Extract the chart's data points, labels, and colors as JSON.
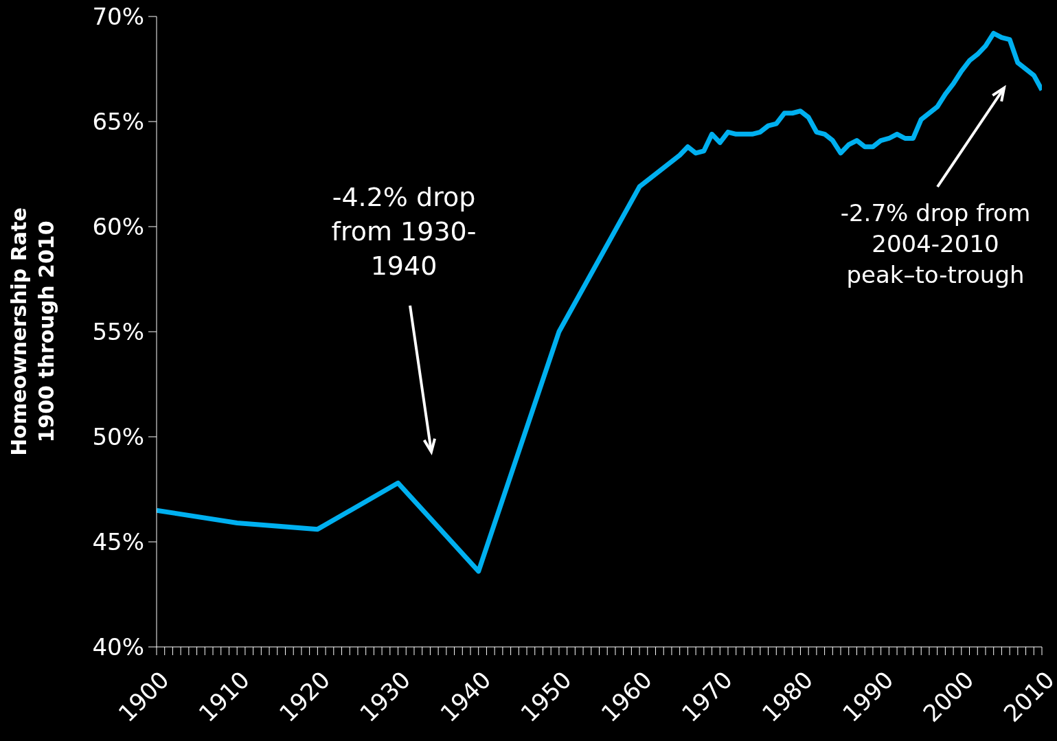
{
  "chart_data": {
    "type": "line",
    "ylabel": "Homeownership Rate\n1900 through 2010",
    "x": [
      1900,
      1910,
      1920,
      1930,
      1940,
      1950,
      1960,
      1965,
      1966,
      1967,
      1968,
      1969,
      1970,
      1971,
      1972,
      1973,
      1974,
      1975,
      1976,
      1977,
      1978,
      1979,
      1980,
      1981,
      1982,
      1983,
      1984,
      1985,
      1986,
      1987,
      1988,
      1989,
      1990,
      1991,
      1992,
      1993,
      1994,
      1995,
      1996,
      1997,
      1998,
      1999,
      2000,
      2001,
      2002,
      2003,
      2004,
      2005,
      2006,
      2007,
      2008,
      2009,
      2010
    ],
    "series": [
      {
        "color": "#00b0f0",
        "values": [
          46.5,
          45.9,
          45.6,
          47.8,
          43.6,
          55.0,
          61.9,
          63.4,
          63.8,
          63.5,
          63.6,
          64.4,
          64.0,
          64.5,
          64.4,
          64.4,
          64.4,
          64.5,
          64.8,
          64.9,
          65.4,
          65.4,
          65.5,
          65.2,
          64.5,
          64.4,
          64.1,
          63.5,
          63.9,
          64.1,
          63.8,
          63.8,
          64.1,
          64.2,
          64.4,
          64.2,
          64.2,
          65.1,
          65.4,
          65.7,
          66.3,
          66.8,
          67.4,
          67.9,
          68.2,
          68.6,
          69.2,
          69.0,
          68.9,
          67.8,
          67.5,
          67.2,
          66.5
        ]
      }
    ],
    "xlim": [
      1900,
      2010
    ],
    "xticks": [
      1900,
      {
        "value": 1901,
        "label": null
      },
      {
        "value": 1902,
        "label": null
      },
      {
        "value": 1903,
        "label": null
      },
      {
        "value": 1904,
        "label": null
      },
      {
        "value": 1905,
        "label": null
      },
      {
        "value": 1906,
        "label": null
      },
      {
        "value": 1907,
        "label": null
      },
      {
        "value": 1908,
        "label": null
      },
      {
        "value": 1909,
        "label": null
      },
      1910,
      {
        "value": 1911,
        "label": null
      },
      {
        "value": 1912,
        "label": null
      },
      {
        "value": 1913,
        "label": null
      },
      {
        "value": 1914,
        "label": null
      },
      {
        "value": 1915,
        "label": null
      },
      {
        "value": 1916,
        "label": null
      },
      {
        "value": 1917,
        "label": null
      },
      {
        "value": 1918,
        "label": null
      },
      {
        "value": 1919,
        "label": null
      },
      1920,
      {
        "value": 1921,
        "label": null
      },
      {
        "value": 1922,
        "label": null
      },
      {
        "value": 1923,
        "label": null
      },
      {
        "value": 1924,
        "label": null
      },
      {
        "value": 1925,
        "label": null
      },
      {
        "value": 1926,
        "label": null
      },
      {
        "value": 1927,
        "label": null
      },
      {
        "value": 1928,
        "label": null
      },
      {
        "value": 1929,
        "label": null
      },
      1930,
      {
        "value": 1931,
        "label": null
      },
      {
        "value": 1932,
        "label": null
      },
      {
        "value": 1933,
        "label": null
      },
      {
        "value": 1934,
        "label": null
      },
      {
        "value": 1935,
        "label": null
      },
      {
        "value": 1936,
        "label": null
      },
      {
        "value": 1937,
        "label": null
      },
      {
        "value": 1938,
        "label": null
      },
      {
        "value": 1939,
        "label": null
      },
      1940,
      {
        "value": 1941,
        "label": null
      },
      {
        "value": 1942,
        "label": null
      },
      {
        "value": 1943,
        "label": null
      },
      {
        "value": 1944,
        "label": null
      },
      {
        "value": 1945,
        "label": null
      },
      {
        "value": 1946,
        "label": null
      },
      {
        "value": 1947,
        "label": null
      },
      {
        "value": 1948,
        "label": null
      },
      {
        "value": 1949,
        "label": null
      },
      1950,
      {
        "value": 1951,
        "label": null
      },
      {
        "value": 1952,
        "label": null
      },
      {
        "value": 1953,
        "label": null
      },
      {
        "value": 1954,
        "label": null
      },
      {
        "value": 1955,
        "label": null
      },
      {
        "value": 1956,
        "label": null
      },
      {
        "value": 1957,
        "label": null
      },
      {
        "value": 1958,
        "label": null
      },
      {
        "value": 1959,
        "label": null
      },
      1960,
      {
        "value": 1961,
        "label": null
      },
      {
        "value": 1962,
        "label": null
      },
      {
        "value": 1963,
        "label": null
      },
      {
        "value": 1964,
        "label": null
      },
      {
        "value": 1965,
        "label": null
      },
      {
        "value": 1966,
        "label": null
      },
      {
        "value": 1967,
        "label": null
      },
      {
        "value": 1968,
        "label": null
      },
      {
        "value": 1969,
        "label": null
      },
      1970,
      {
        "value": 1971,
        "label": null
      },
      {
        "value": 1972,
        "label": null
      },
      {
        "value": 1973,
        "label": null
      },
      {
        "value": 1974,
        "label": null
      },
      {
        "value": 1975,
        "label": null
      },
      {
        "value": 1976,
        "label": null
      },
      {
        "value": 1977,
        "label": null
      },
      {
        "value": 1978,
        "label": null
      },
      {
        "value": 1979,
        "label": null
      },
      1980,
      {
        "value": 1981,
        "label": null
      },
      {
        "value": 1982,
        "label": null
      },
      {
        "value": 1983,
        "label": null
      },
      {
        "value": 1984,
        "label": null
      },
      {
        "value": 1985,
        "label": null
      },
      {
        "value": 1986,
        "label": null
      },
      {
        "value": 1987,
        "label": null
      },
      {
        "value": 1988,
        "label": null
      },
      {
        "value": 1989,
        "label": null
      },
      1990,
      {
        "value": 1991,
        "label": null
      },
      {
        "value": 1992,
        "label": null
      },
      {
        "value": 1993,
        "label": null
      },
      {
        "value": 1994,
        "label": null
      },
      {
        "value": 1995,
        "label": null
      },
      {
        "value": 1996,
        "label": null
      },
      {
        "value": 1997,
        "label": null
      },
      {
        "value": 1998,
        "label": null
      },
      {
        "value": 1999,
        "label": null
      },
      2000,
      {
        "value": 2001,
        "label": null
      },
      {
        "value": 2002,
        "label": null
      },
      {
        "value": 2003,
        "label": null
      },
      {
        "value": 2004,
        "label": null
      },
      {
        "value": 2005,
        "label": null
      },
      {
        "value": 2006,
        "label": null
      },
      {
        "value": 2007,
        "label": null
      },
      {
        "value": 2008,
        "label": null
      },
      {
        "value": 2009,
        "label": null
      },
      2010
    ],
    "ylim": [
      40,
      70
    ],
    "yticks": [
      {
        "value": 40,
        "label": "40%"
      },
      {
        "value": 45,
        "label": "45%"
      },
      {
        "value": 50,
        "label": "50%"
      },
      {
        "value": 55,
        "label": "55%"
      },
      {
        "value": 60,
        "label": "60%"
      },
      {
        "value": 65,
        "label": "65%"
      },
      {
        "value": 70,
        "label": "70%"
      }
    ],
    "annotations": [
      "-4.2% drop\nfrom 1930-\n1940",
      "-2.7% drop from\n2004-2010\npeak–to-trough"
    ],
    "grid": false,
    "legend": false,
    "marker": "none",
    "line_style": "solid"
  }
}
